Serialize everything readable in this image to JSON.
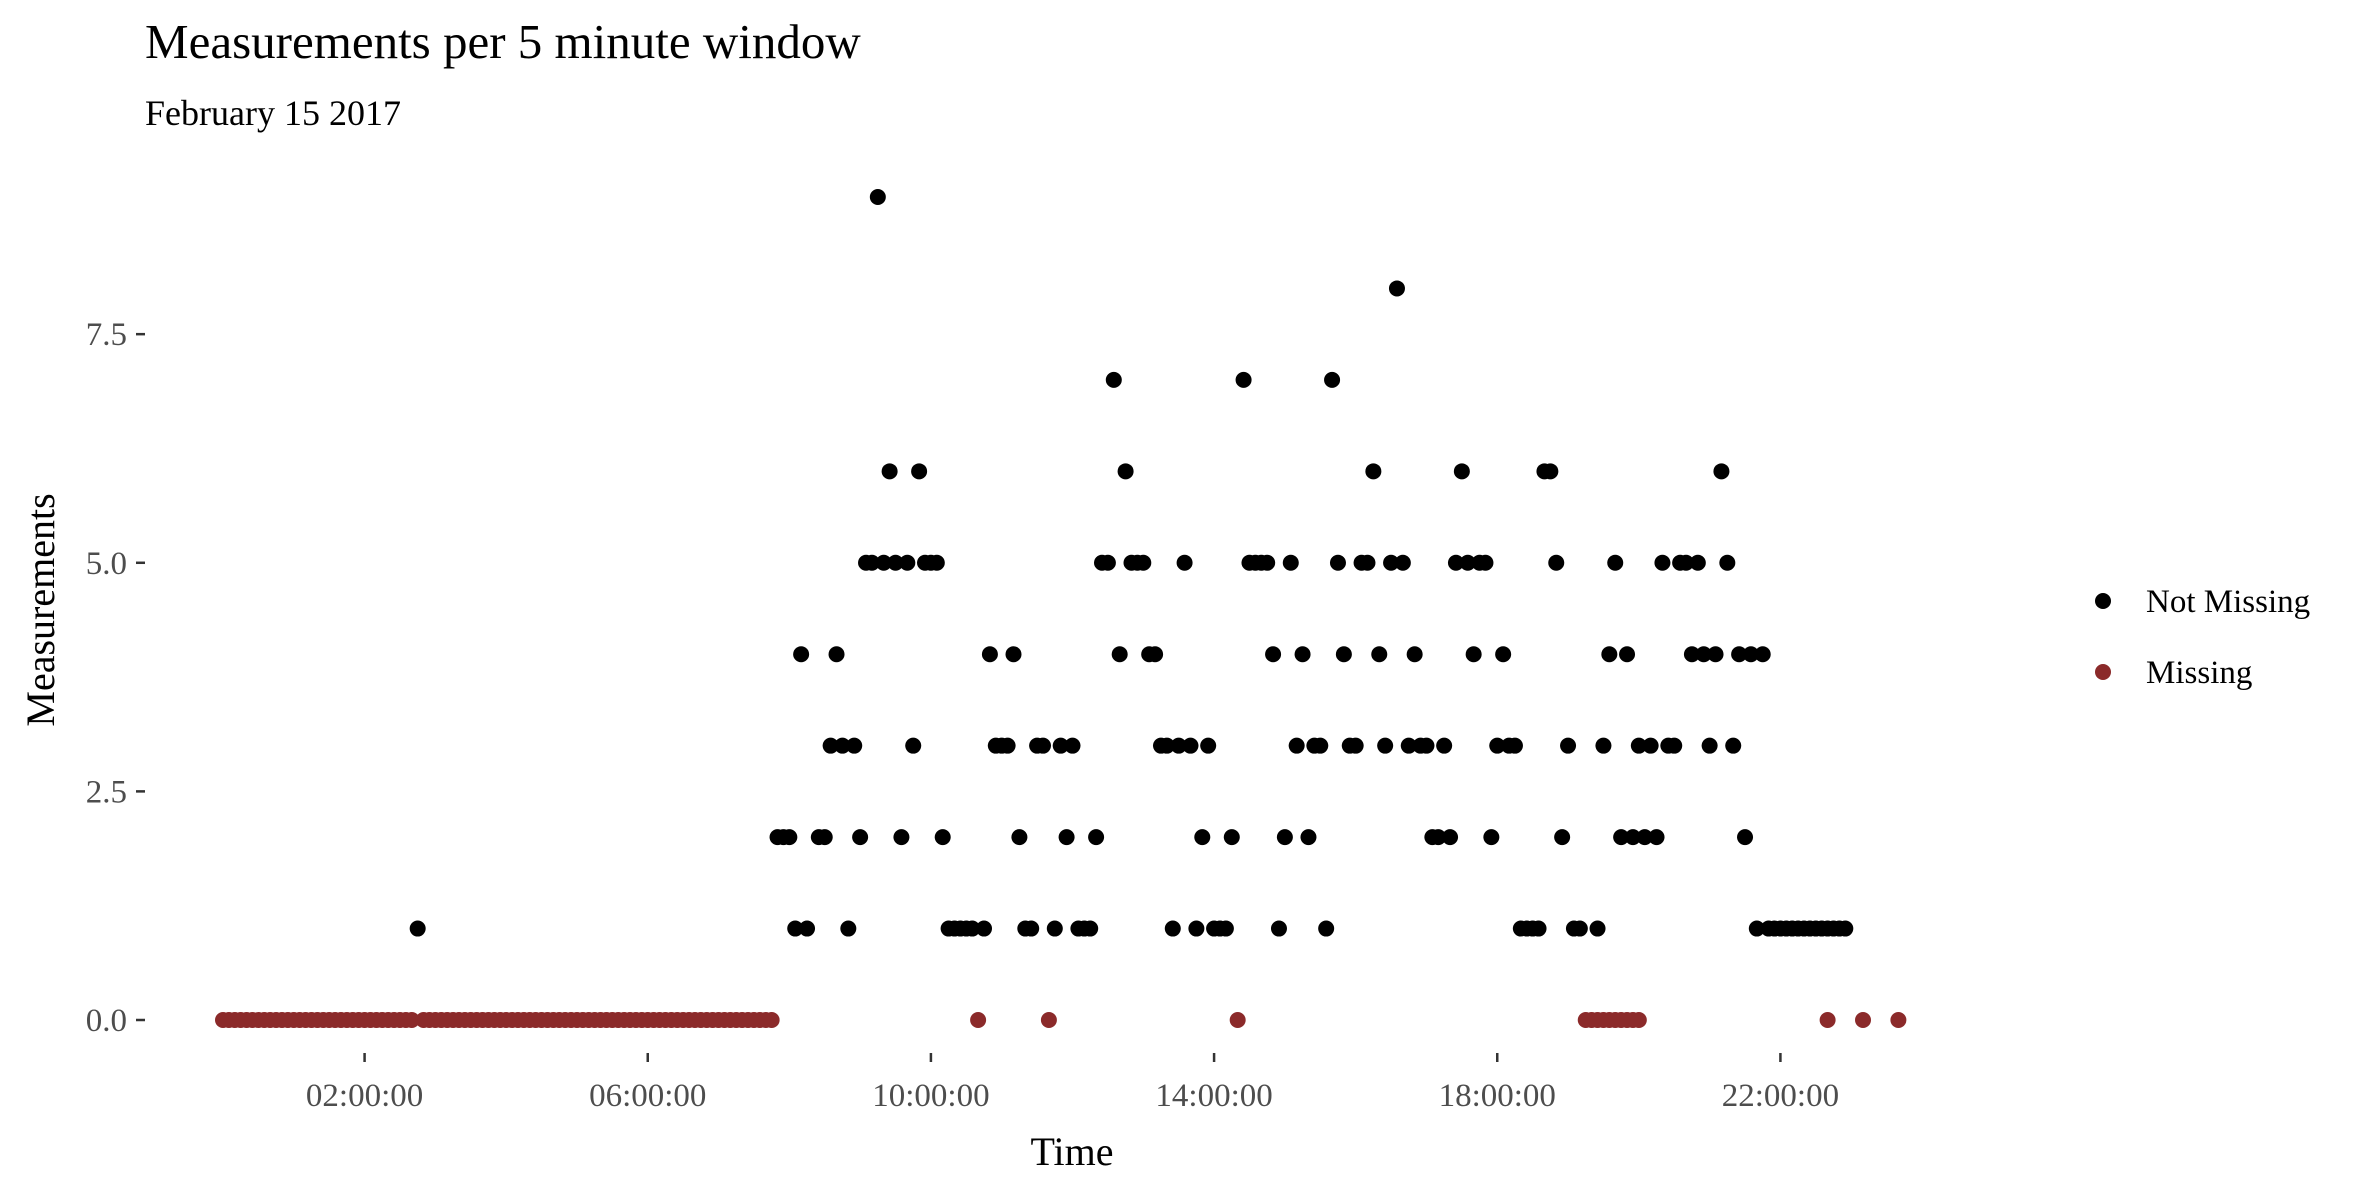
{
  "chart_data": {
    "type": "scatter",
    "title": "Measurements per 5 minute window",
    "subtitle": "February 15 2017",
    "xlabel": "Time",
    "ylabel": "Measurements",
    "x_tick_labels": [
      "02:00:00",
      "06:00:00",
      "10:00:00",
      "14:00:00",
      "18:00:00",
      "22:00:00"
    ],
    "y_tick_labels": [
      "0.0",
      "2.5",
      "5.0",
      "7.5"
    ],
    "xlim": [
      "00:00:00",
      "24:00:00"
    ],
    "ylim": [
      0,
      9
    ],
    "grid": false,
    "legend_position": "right",
    "series": [
      {
        "name": "Not Missing",
        "color": "#000000",
        "points": [
          [
            "02:45:00",
            1
          ],
          [
            "07:50:00",
            2
          ],
          [
            "07:55:00",
            2
          ],
          [
            "08:00:00",
            2
          ],
          [
            "08:05:00",
            1
          ],
          [
            "08:10:00",
            4
          ],
          [
            "08:15:00",
            1
          ],
          [
            "08:25:00",
            2
          ],
          [
            "08:30:00",
            2
          ],
          [
            "08:35:00",
            3
          ],
          [
            "08:40:00",
            4
          ],
          [
            "08:45:00",
            3
          ],
          [
            "08:50:00",
            1
          ],
          [
            "08:55:00",
            3
          ],
          [
            "09:00:00",
            2
          ],
          [
            "09:05:00",
            5
          ],
          [
            "09:10:00",
            5
          ],
          [
            "09:15:00",
            9
          ],
          [
            "09:20:00",
            5
          ],
          [
            "09:25:00",
            6
          ],
          [
            "09:30:00",
            5
          ],
          [
            "09:35:00",
            2
          ],
          [
            "09:40:00",
            5
          ],
          [
            "09:45:00",
            3
          ],
          [
            "09:50:00",
            6
          ],
          [
            "09:55:00",
            5
          ],
          [
            "10:00:00",
            5
          ],
          [
            "10:05:00",
            5
          ],
          [
            "10:10:00",
            2
          ],
          [
            "10:15:00",
            1
          ],
          [
            "10:20:00",
            1
          ],
          [
            "10:25:00",
            1
          ],
          [
            "10:30:00",
            1
          ],
          [
            "10:35:00",
            1
          ],
          [
            "10:45:00",
            1
          ],
          [
            "10:50:00",
            4
          ],
          [
            "10:55:00",
            3
          ],
          [
            "11:00:00",
            3
          ],
          [
            "11:05:00",
            3
          ],
          [
            "11:10:00",
            4
          ],
          [
            "11:15:00",
            2
          ],
          [
            "11:20:00",
            1
          ],
          [
            "11:25:00",
            1
          ],
          [
            "11:30:00",
            3
          ],
          [
            "11:35:00",
            3
          ],
          [
            "11:45:00",
            1
          ],
          [
            "11:50:00",
            3
          ],
          [
            "11:55:00",
            2
          ],
          [
            "12:00:00",
            3
          ],
          [
            "12:05:00",
            1
          ],
          [
            "12:10:00",
            1
          ],
          [
            "12:15:00",
            1
          ],
          [
            "12:20:00",
            2
          ],
          [
            "12:25:00",
            5
          ],
          [
            "12:30:00",
            5
          ],
          [
            "12:35:00",
            7
          ],
          [
            "12:40:00",
            4
          ],
          [
            "12:45:00",
            6
          ],
          [
            "12:50:00",
            5
          ],
          [
            "12:55:00",
            5
          ],
          [
            "13:00:00",
            5
          ],
          [
            "13:05:00",
            4
          ],
          [
            "13:10:00",
            4
          ],
          [
            "13:15:00",
            3
          ],
          [
            "13:20:00",
            3
          ],
          [
            "13:25:00",
            1
          ],
          [
            "13:30:00",
            3
          ],
          [
            "13:35:00",
            5
          ],
          [
            "13:40:00",
            3
          ],
          [
            "13:45:00",
            1
          ],
          [
            "13:50:00",
            2
          ],
          [
            "13:55:00",
            3
          ],
          [
            "14:00:00",
            1
          ],
          [
            "14:05:00",
            1
          ],
          [
            "14:10:00",
            1
          ],
          [
            "14:15:00",
            2
          ],
          [
            "14:25:00",
            7
          ],
          [
            "14:30:00",
            5
          ],
          [
            "14:35:00",
            5
          ],
          [
            "14:40:00",
            5
          ],
          [
            "14:45:00",
            5
          ],
          [
            "14:50:00",
            4
          ],
          [
            "14:55:00",
            1
          ],
          [
            "15:00:00",
            2
          ],
          [
            "15:05:00",
            5
          ],
          [
            "15:10:00",
            3
          ],
          [
            "15:15:00",
            4
          ],
          [
            "15:20:00",
            2
          ],
          [
            "15:25:00",
            3
          ],
          [
            "15:30:00",
            3
          ],
          [
            "15:35:00",
            1
          ],
          [
            "15:40:00",
            7
          ],
          [
            "15:45:00",
            5
          ],
          [
            "15:50:00",
            4
          ],
          [
            "15:55:00",
            3
          ],
          [
            "16:00:00",
            3
          ],
          [
            "16:05:00",
            5
          ],
          [
            "16:10:00",
            5
          ],
          [
            "16:15:00",
            6
          ],
          [
            "16:20:00",
            4
          ],
          [
            "16:25:00",
            3
          ],
          [
            "16:30:00",
            5
          ],
          [
            "16:35:00",
            8
          ],
          [
            "16:40:00",
            5
          ],
          [
            "16:45:00",
            3
          ],
          [
            "16:50:00",
            4
          ],
          [
            "16:55:00",
            3
          ],
          [
            "17:00:00",
            3
          ],
          [
            "17:05:00",
            2
          ],
          [
            "17:10:00",
            2
          ],
          [
            "17:15:00",
            3
          ],
          [
            "17:20:00",
            2
          ],
          [
            "17:25:00",
            5
          ],
          [
            "17:30:00",
            6
          ],
          [
            "17:35:00",
            5
          ],
          [
            "17:40:00",
            4
          ],
          [
            "17:45:00",
            5
          ],
          [
            "17:50:00",
            5
          ],
          [
            "17:55:00",
            2
          ],
          [
            "18:00:00",
            3
          ],
          [
            "18:05:00",
            4
          ],
          [
            "18:10:00",
            3
          ],
          [
            "18:15:00",
            3
          ],
          [
            "18:20:00",
            1
          ],
          [
            "18:25:00",
            1
          ],
          [
            "18:30:00",
            1
          ],
          [
            "18:35:00",
            1
          ],
          [
            "18:40:00",
            6
          ],
          [
            "18:45:00",
            6
          ],
          [
            "18:50:00",
            5
          ],
          [
            "18:55:00",
            2
          ],
          [
            "19:00:00",
            3
          ],
          [
            "19:05:00",
            1
          ],
          [
            "19:10:00",
            1
          ],
          [
            "19:25:00",
            1
          ],
          [
            "19:30:00",
            3
          ],
          [
            "19:35:00",
            4
          ],
          [
            "19:40:00",
            5
          ],
          [
            "19:45:00",
            2
          ],
          [
            "19:50:00",
            4
          ],
          [
            "19:55:00",
            2
          ],
          [
            "20:00:00",
            3
          ],
          [
            "20:05:00",
            2
          ],
          [
            "20:10:00",
            3
          ],
          [
            "20:15:00",
            2
          ],
          [
            "20:20:00",
            5
          ],
          [
            "20:25:00",
            3
          ],
          [
            "20:30:00",
            3
          ],
          [
            "20:35:00",
            5
          ],
          [
            "20:40:00",
            5
          ],
          [
            "20:45:00",
            4
          ],
          [
            "20:50:00",
            5
          ],
          [
            "20:55:00",
            4
          ],
          [
            "21:00:00",
            3
          ],
          [
            "21:05:00",
            4
          ],
          [
            "21:10:00",
            6
          ],
          [
            "21:15:00",
            5
          ],
          [
            "21:20:00",
            3
          ],
          [
            "21:25:00",
            4
          ],
          [
            "21:30:00",
            2
          ],
          [
            "21:35:00",
            4
          ],
          [
            "21:40:00",
            1
          ],
          [
            "21:45:00",
            4
          ],
          [
            "21:50:00",
            1
          ],
          [
            "21:55:00",
            1
          ],
          [
            "22:00:00",
            1
          ],
          [
            "22:05:00",
            1
          ],
          [
            "22:10:00",
            1
          ],
          [
            "22:15:00",
            1
          ],
          [
            "22:20:00",
            1
          ],
          [
            "22:25:00",
            1
          ],
          [
            "22:30:00",
            1
          ],
          [
            "22:35:00",
            1
          ],
          [
            "22:40:00",
            1
          ],
          [
            "22:45:00",
            1
          ],
          [
            "22:50:00",
            1
          ],
          [
            "22:55:00",
            1
          ]
        ]
      },
      {
        "name": "Missing",
        "color": "#8b2a2a",
        "points": [
          [
            "00:00:00",
            0
          ],
          [
            "00:05:00",
            0
          ],
          [
            "00:10:00",
            0
          ],
          [
            "00:15:00",
            0
          ],
          [
            "00:20:00",
            0
          ],
          [
            "00:25:00",
            0
          ],
          [
            "00:30:00",
            0
          ],
          [
            "00:35:00",
            0
          ],
          [
            "00:40:00",
            0
          ],
          [
            "00:45:00",
            0
          ],
          [
            "00:50:00",
            0
          ],
          [
            "00:55:00",
            0
          ],
          [
            "01:00:00",
            0
          ],
          [
            "01:05:00",
            0
          ],
          [
            "01:10:00",
            0
          ],
          [
            "01:15:00",
            0
          ],
          [
            "01:20:00",
            0
          ],
          [
            "01:25:00",
            0
          ],
          [
            "01:30:00",
            0
          ],
          [
            "01:35:00",
            0
          ],
          [
            "01:40:00",
            0
          ],
          [
            "01:45:00",
            0
          ],
          [
            "01:50:00",
            0
          ],
          [
            "01:55:00",
            0
          ],
          [
            "02:00:00",
            0
          ],
          [
            "02:05:00",
            0
          ],
          [
            "02:10:00",
            0
          ],
          [
            "02:15:00",
            0
          ],
          [
            "02:20:00",
            0
          ],
          [
            "02:25:00",
            0
          ],
          [
            "02:30:00",
            0
          ],
          [
            "02:35:00",
            0
          ],
          [
            "02:40:00",
            0
          ],
          [
            "02:50:00",
            0
          ],
          [
            "02:55:00",
            0
          ],
          [
            "03:00:00",
            0
          ],
          [
            "03:05:00",
            0
          ],
          [
            "03:10:00",
            0
          ],
          [
            "03:15:00",
            0
          ],
          [
            "03:20:00",
            0
          ],
          [
            "03:25:00",
            0
          ],
          [
            "03:30:00",
            0
          ],
          [
            "03:35:00",
            0
          ],
          [
            "03:40:00",
            0
          ],
          [
            "03:45:00",
            0
          ],
          [
            "03:50:00",
            0
          ],
          [
            "03:55:00",
            0
          ],
          [
            "04:00:00",
            0
          ],
          [
            "04:05:00",
            0
          ],
          [
            "04:10:00",
            0
          ],
          [
            "04:15:00",
            0
          ],
          [
            "04:20:00",
            0
          ],
          [
            "04:25:00",
            0
          ],
          [
            "04:30:00",
            0
          ],
          [
            "04:35:00",
            0
          ],
          [
            "04:40:00",
            0
          ],
          [
            "04:45:00",
            0
          ],
          [
            "04:50:00",
            0
          ],
          [
            "04:55:00",
            0
          ],
          [
            "05:00:00",
            0
          ],
          [
            "05:05:00",
            0
          ],
          [
            "05:10:00",
            0
          ],
          [
            "05:15:00",
            0
          ],
          [
            "05:20:00",
            0
          ],
          [
            "05:25:00",
            0
          ],
          [
            "05:30:00",
            0
          ],
          [
            "05:35:00",
            0
          ],
          [
            "05:40:00",
            0
          ],
          [
            "05:45:00",
            0
          ],
          [
            "05:50:00",
            0
          ],
          [
            "05:55:00",
            0
          ],
          [
            "06:00:00",
            0
          ],
          [
            "06:05:00",
            0
          ],
          [
            "06:10:00",
            0
          ],
          [
            "06:15:00",
            0
          ],
          [
            "06:20:00",
            0
          ],
          [
            "06:25:00",
            0
          ],
          [
            "06:30:00",
            0
          ],
          [
            "06:35:00",
            0
          ],
          [
            "06:40:00",
            0
          ],
          [
            "06:45:00",
            0
          ],
          [
            "06:50:00",
            0
          ],
          [
            "06:55:00",
            0
          ],
          [
            "07:00:00",
            0
          ],
          [
            "07:05:00",
            0
          ],
          [
            "07:10:00",
            0
          ],
          [
            "07:15:00",
            0
          ],
          [
            "07:20:00",
            0
          ],
          [
            "07:25:00",
            0
          ],
          [
            "07:30:00",
            0
          ],
          [
            "07:35:00",
            0
          ],
          [
            "07:40:00",
            0
          ],
          [
            "07:45:00",
            0
          ],
          [
            "10:40:00",
            0
          ],
          [
            "11:40:00",
            0
          ],
          [
            "14:20:00",
            0
          ],
          [
            "19:15:00",
            0
          ],
          [
            "19:20:00",
            0
          ],
          [
            "19:25:00",
            0
          ],
          [
            "19:30:00",
            0
          ],
          [
            "19:35:00",
            0
          ],
          [
            "19:40:00",
            0
          ],
          [
            "19:45:00",
            0
          ],
          [
            "19:50:00",
            0
          ],
          [
            "19:55:00",
            0
          ],
          [
            "20:00:00",
            0
          ],
          [
            "22:40:00",
            0
          ],
          [
            "23:10:00",
            0
          ],
          [
            "23:40:00",
            0
          ]
        ]
      }
    ]
  }
}
